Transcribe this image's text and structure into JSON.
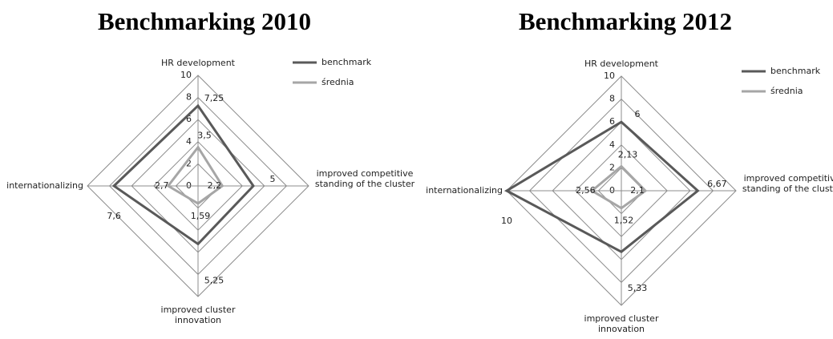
{
  "chart_data": [
    {
      "type": "radar",
      "title": "Benchmarking 2010",
      "categories": [
        "HR development",
        "improved competitive standing of the cluster",
        "improved cluster innovation",
        "internationalizing"
      ],
      "series": [
        {
          "name": "benchmark",
          "color": "#595959",
          "values": [
            7.25,
            5,
            5.25,
            7.6
          ],
          "value_labels": [
            "7,25",
            "5",
            "5,25",
            "7,6"
          ]
        },
        {
          "name": "średnia",
          "color": "#a6a6a6",
          "values": [
            3.5,
            2.2,
            1.59,
            2.7
          ],
          "value_labels": [
            "3,5",
            "2,2",
            "1,59",
            "2,7"
          ]
        }
      ],
      "ylim": [
        0,
        10
      ],
      "yticks": [
        0,
        2,
        4,
        6,
        8,
        10
      ],
      "grid": true,
      "legend": "top-right"
    },
    {
      "type": "radar",
      "title": "Benchmarking 2012",
      "categories": [
        "HR development",
        "improved competitive standing of the cluster",
        "improved cluster innovation",
        "internationalizing"
      ],
      "series": [
        {
          "name": "benchmark",
          "color": "#595959",
          "values": [
            6,
            6.67,
            5.33,
            10
          ],
          "value_labels": [
            "6",
            "6,67",
            "5,33",
            "10"
          ]
        },
        {
          "name": "średnia",
          "color": "#a6a6a6",
          "values": [
            2.13,
            2.1,
            1.52,
            2.56
          ],
          "value_labels": [
            "2,13",
            "2,1",
            "1,52",
            "2,56"
          ]
        }
      ],
      "ylim": [
        0,
        10
      ],
      "yticks": [
        0,
        2,
        4,
        6,
        8,
        10
      ],
      "grid": true,
      "legend": "top-right"
    }
  ]
}
